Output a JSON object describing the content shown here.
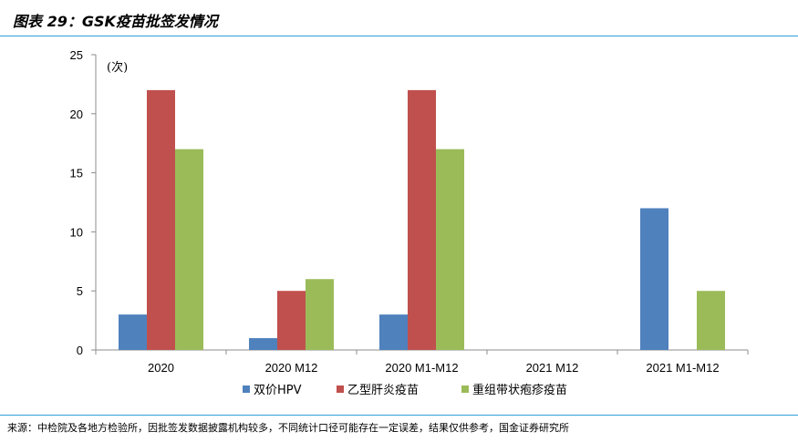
{
  "header": {
    "title": "图表 29：GSK疫苗批签发情况"
  },
  "footer": {
    "source": "来源：中检院及各地方检验所，因批签发数据披露机构较多，不同统计口径可能存在一定误差，结果仅供参考，国金证券研究所"
  },
  "chart_data": {
    "type": "bar",
    "unit_label": "(次)",
    "categories": [
      "2020",
      "2020 M12",
      "2020 M1-M12",
      "2021 M12",
      "2021 M1-M12"
    ],
    "series": [
      {
        "name": "双价HPV",
        "color": "#4f81bd",
        "values": [
          3,
          1,
          3,
          0,
          12
        ]
      },
      {
        "name": "乙型肝炎疫苗",
        "color": "#c0504d",
        "values": [
          22,
          5,
          22,
          0,
          0
        ]
      },
      {
        "name": "重组带状疱疹疫苗",
        "color": "#9bbb59",
        "values": [
          17,
          6,
          17,
          0,
          5
        ]
      }
    ],
    "ylim": [
      0,
      25
    ],
    "yticks": [
      0,
      5,
      10,
      15,
      20,
      25
    ],
    "grid": false,
    "legend_position": "bottom"
  }
}
